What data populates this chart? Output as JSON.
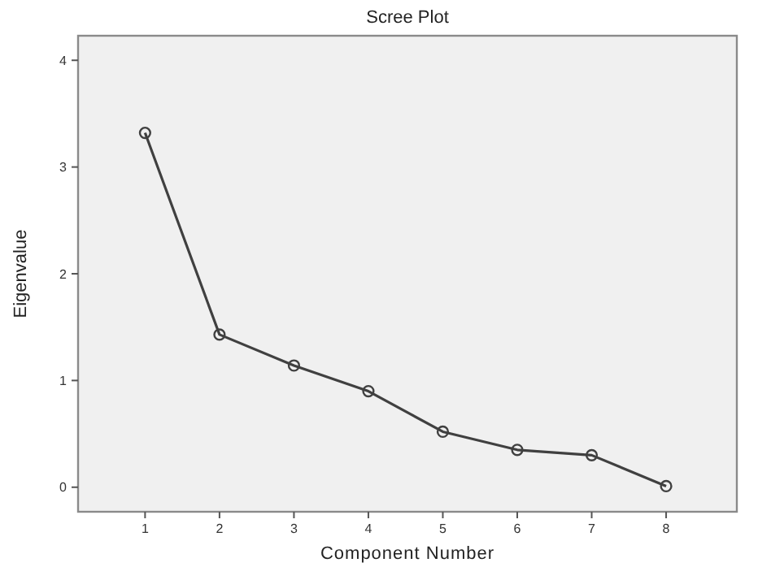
{
  "chart_data": {
    "type": "line",
    "title": "Scree Plot",
    "xlabel": "Component Number",
    "ylabel": "Eigenvalue",
    "x": [
      1,
      2,
      3,
      4,
      5,
      6,
      7,
      8
    ],
    "series": [
      {
        "color": "#404040",
        "values": [
          3.32,
          1.43,
          1.14,
          0.9,
          0.52,
          0.35,
          0.3,
          0.01
        ]
      }
    ],
    "xlim": [
      0.1,
      8.95
    ],
    "xticks": [
      1,
      2,
      3,
      4,
      5,
      6,
      7,
      8
    ],
    "ylim": [
      -0.23,
      4.23
    ],
    "yticks": [
      0,
      1,
      2,
      3,
      4
    ],
    "marker": "circle",
    "line_style": "solid",
    "grid": false
  }
}
